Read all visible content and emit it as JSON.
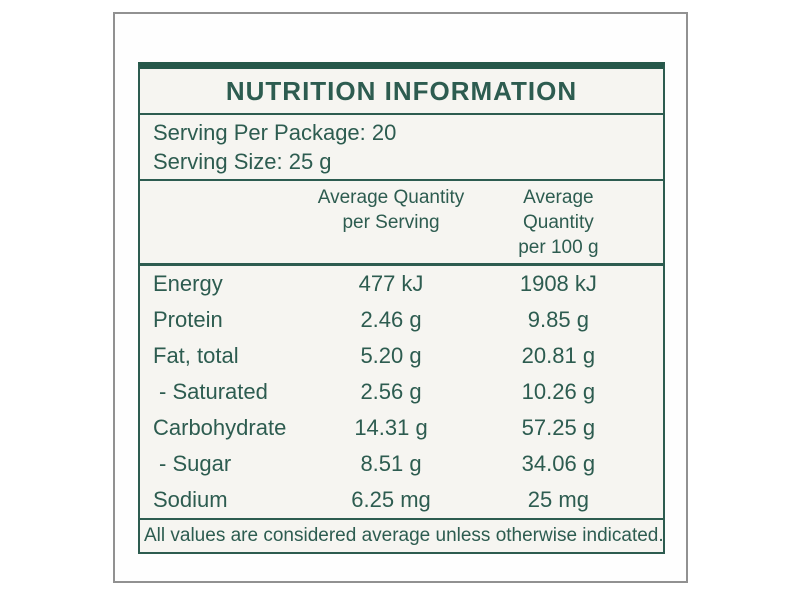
{
  "page": {
    "title": "NUTRITION INFORMATION",
    "serving": {
      "per_package": "Serving Per Package: 20",
      "size": "Serving Size: 25 g"
    },
    "table": {
      "headers": {
        "serving_col": {
          "line1": "Average Quantity",
          "line2": "per Serving"
        },
        "per100_col": {
          "line1": "Average Quantity",
          "line2": "per 100 g"
        }
      },
      "rows": [
        {
          "name": "Energy",
          "per_serving": "477 kJ",
          "per_100g": "1908 kJ"
        },
        {
          "name": "Protein",
          "per_serving": "2.46 g",
          "per_100g": "9.85 g"
        },
        {
          "name": "Fat, total",
          "per_serving": "5.20 g",
          "per_100g": "20.81 g"
        },
        {
          "name": "- Saturated",
          "per_serving": "2.56 g",
          "per_100g": "10.26 g"
        },
        {
          "name": "Carbohydrate",
          "per_serving": "14.31 g",
          "per_100g": "57.25 g"
        },
        {
          "name": "- Sugar",
          "per_serving": "8.51 g",
          "per_100g": "34.06 g"
        },
        {
          "name": "Sodium",
          "per_serving": "6.25 mg",
          "per_100g": "25 mg"
        }
      ]
    },
    "footnote": "All values are considered average unless otherwise indicated.",
    "colors": {
      "accent_teal": "#2d5c50",
      "top_bar_teal": "#26584a",
      "label_background": "#f6f5f1",
      "frame_border_gray": "#919191"
    }
  }
}
